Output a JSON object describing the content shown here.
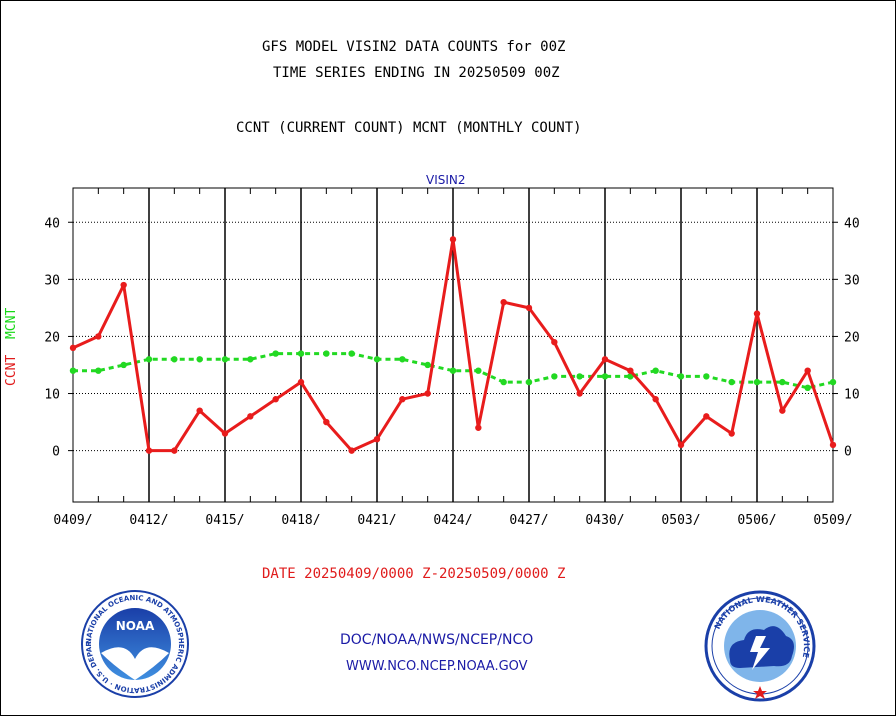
{
  "header": {
    "title_line1": "GFS MODEL VISIN2 DATA COUNTS for 00Z",
    "title_line2": "TIME SERIES ENDING IN 20250509 00Z",
    "title_line3": "CCNT (CURRENT COUNT) MCNT (MONTHLY COUNT)"
  },
  "chart_data": {
    "type": "line",
    "title": "VISIN2",
    "ylabel_ccnt": "CCNT",
    "ylabel_mcnt": "MCNT",
    "xlabel": "DATE 20250409/0000 Z-20250509/0000 Z",
    "x_tick_labels": [
      "0409/",
      "0412/",
      "0415/",
      "0418/",
      "0421/",
      "0424/",
      "0427/",
      "0430/",
      "0503/",
      "0506/",
      "0509/"
    ],
    "y_ticks": [
      0,
      10,
      20,
      30,
      40
    ],
    "ylim": [
      -9,
      46
    ],
    "x": [
      "0409",
      "0410",
      "0411",
      "0412",
      "0413",
      "0414",
      "0415",
      "0416",
      "0417",
      "0418",
      "0419",
      "0420",
      "0421",
      "0422",
      "0423",
      "0424",
      "0425",
      "0426",
      "0427",
      "0428",
      "0429",
      "0430",
      "0501",
      "0502",
      "0503",
      "0504",
      "0505",
      "0506",
      "0507",
      "0508",
      "0509"
    ],
    "grid": true,
    "series": [
      {
        "name": "CCNT",
        "color": "#e81c1c",
        "style": "solid",
        "values": [
          18,
          20,
          29,
          0,
          0,
          7,
          3,
          6,
          9,
          12,
          5,
          0,
          2,
          9,
          10,
          37,
          4,
          26,
          25,
          19,
          10,
          16,
          14,
          9,
          1,
          6,
          3,
          24,
          7,
          14,
          1
        ]
      },
      {
        "name": "MCNT",
        "color": "#22d922",
        "style": "dashed",
        "values": [
          14,
          14,
          15,
          16,
          16,
          16,
          16,
          16,
          17,
          17,
          17,
          17,
          16,
          16,
          15,
          14,
          14,
          12,
          12,
          13,
          13,
          13,
          13,
          14,
          13,
          13,
          12,
          12,
          12,
          11,
          12
        ]
      }
    ]
  },
  "footer": {
    "line1": "DOC/NOAA/NWS/NCEP/NCO",
    "line2": "WWW.NCO.NCEP.NOAA.GOV"
  },
  "logos": {
    "noaa_text": "NOAA",
    "noaa_ring": "NATIONAL OCEANIC AND ATMOSPHERIC ADMINISTRATION · U.S. DEPARTMENT OF COMMERCE ·",
    "nws_ring": "NATIONAL WEATHER SERVICE"
  }
}
